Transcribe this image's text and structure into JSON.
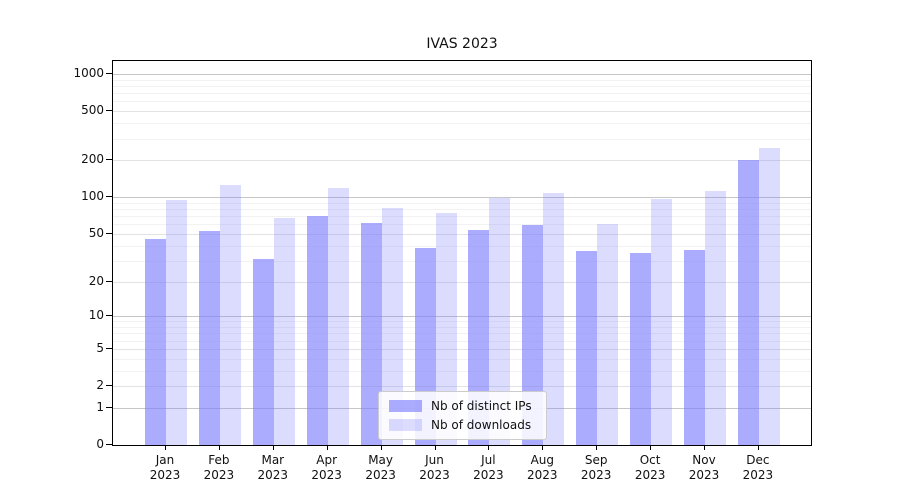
{
  "chart_data": {
    "type": "bar",
    "title": "IVAS 2023",
    "categories": [
      "Jan",
      "Feb",
      "Mar",
      "Apr",
      "May",
      "Jun",
      "Jul",
      "Aug",
      "Sep",
      "Oct",
      "Nov",
      "Dec"
    ],
    "year_label": "2023",
    "series": [
      {
        "name": "Nb of distinct IPs",
        "color": "rgba(127,127,255,0.65)",
        "values": [
          45,
          53,
          31,
          70,
          61,
          38,
          54,
          59,
          36,
          35,
          37,
          200
        ]
      },
      {
        "name": "Nb of downloads",
        "color": "rgba(127,127,255,0.27)",
        "values": [
          95,
          125,
          67,
          120,
          81,
          75,
          98,
          108,
          60,
          97,
          112,
          253
        ]
      }
    ],
    "y_axis": {
      "scale": "symlog (position ~ log10(1+v))",
      "ticks": [
        0,
        1,
        2,
        5,
        10,
        20,
        50,
        100,
        200,
        500,
        1000
      ],
      "minor_ticks": [
        3,
        4,
        6,
        7,
        8,
        9,
        30,
        40,
        60,
        70,
        80,
        90,
        300,
        400,
        600,
        700,
        800,
        900
      ],
      "max": 1275
    },
    "xlabel": "",
    "ylabel": "",
    "grid": true,
    "legend_position": "bottom-center"
  }
}
